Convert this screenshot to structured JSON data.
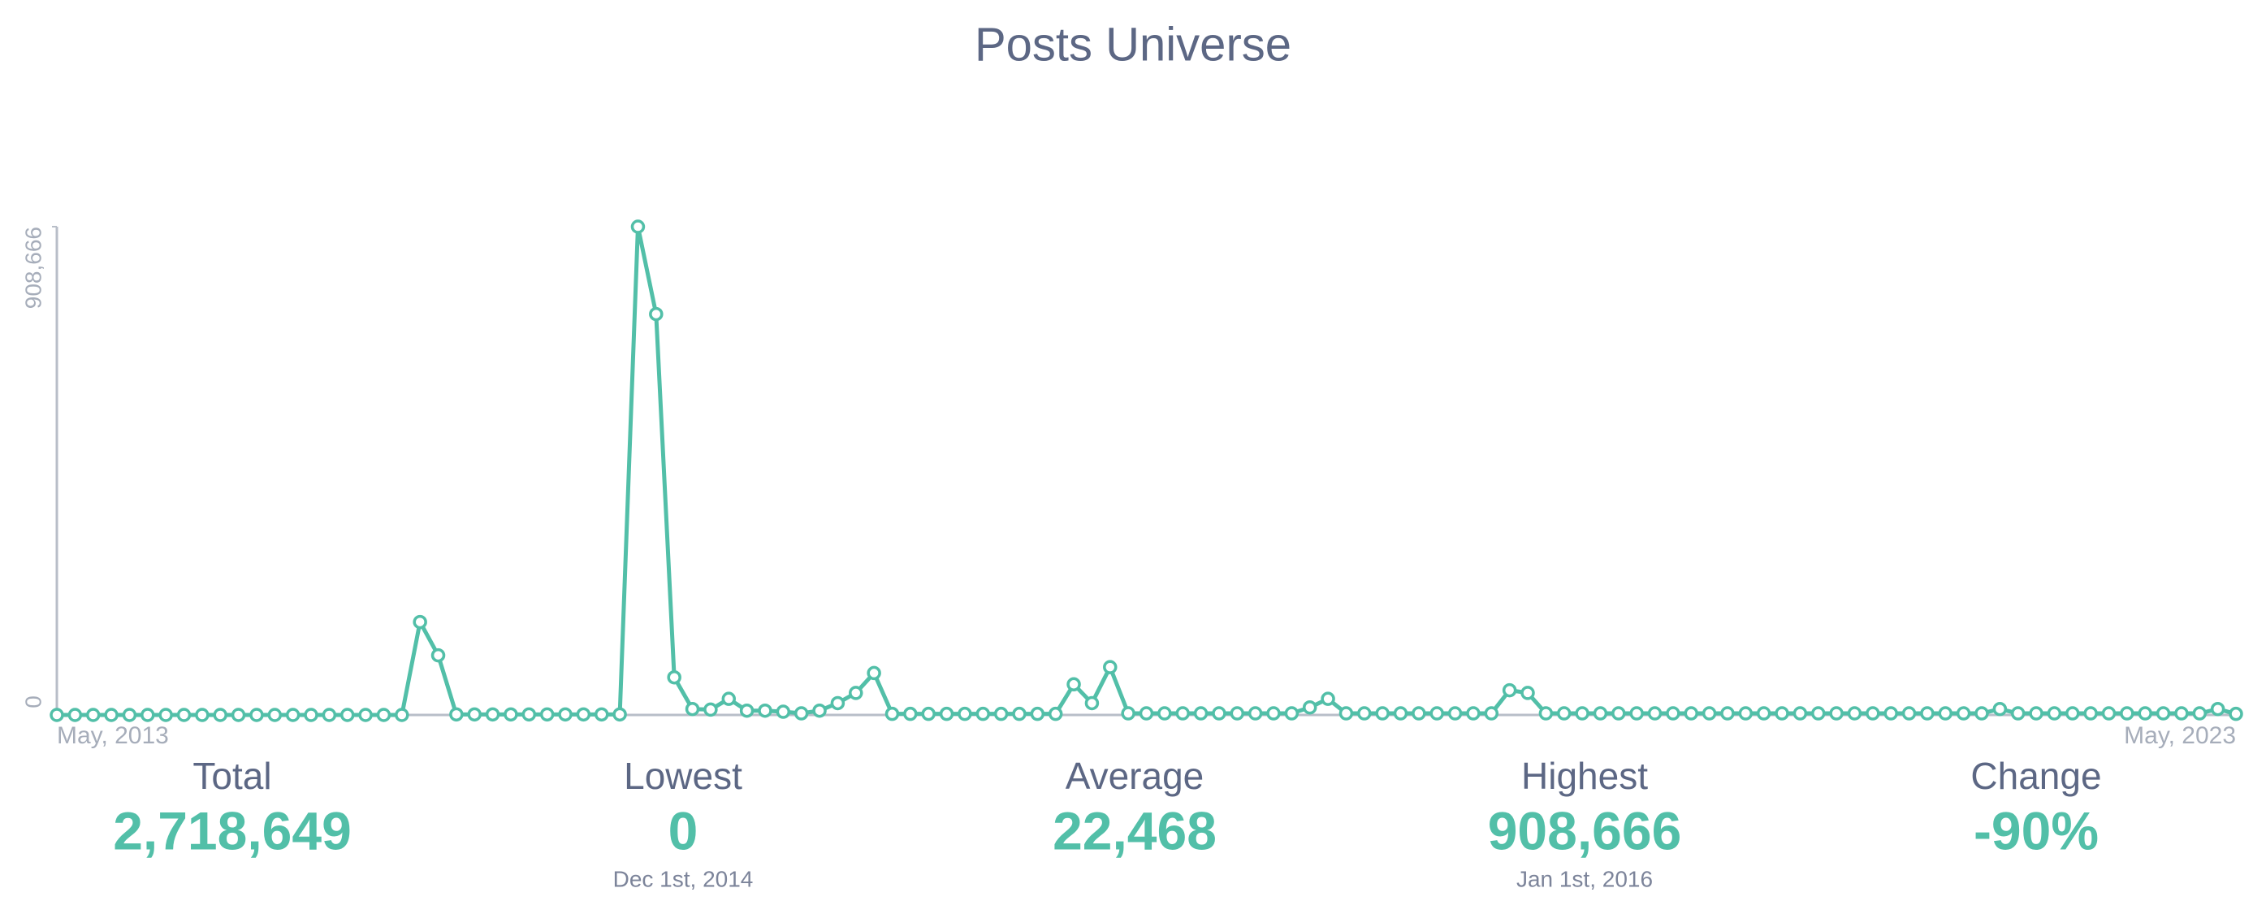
{
  "chart_data": {
    "type": "line",
    "title": "Posts Universe",
    "categories": [
      "May, 2013",
      null,
      null,
      null,
      null,
      null,
      null,
      null,
      null,
      null,
      null,
      null,
      null,
      null,
      null,
      null,
      null,
      null,
      null,
      null,
      null,
      null,
      null,
      null,
      null,
      null,
      null,
      null,
      null,
      null,
      null,
      null,
      null,
      null,
      null,
      null,
      null,
      null,
      null,
      null,
      null,
      null,
      null,
      null,
      null,
      null,
      null,
      null,
      null,
      null,
      null,
      null,
      null,
      null,
      null,
      null,
      null,
      null,
      null,
      null,
      null,
      null,
      null,
      null,
      null,
      null,
      null,
      null,
      null,
      null,
      null,
      null,
      null,
      null,
      null,
      null,
      null,
      null,
      null,
      null,
      null,
      null,
      null,
      null,
      null,
      null,
      null,
      null,
      null,
      null,
      null,
      null,
      null,
      null,
      null,
      null,
      null,
      null,
      null,
      null,
      null,
      null,
      null,
      null,
      null,
      null,
      null,
      null,
      null,
      null,
      null,
      null,
      null,
      null,
      null,
      null,
      null,
      null,
      null,
      null,
      "May, 2023"
    ],
    "values": [
      0,
      0,
      0,
      0,
      0,
      0,
      0,
      0,
      0,
      0,
      0,
      0,
      0,
      0,
      0,
      0,
      0,
      0,
      0,
      0,
      173000,
      111000,
      1000,
      1000,
      1000,
      1000,
      1000,
      1000,
      1000,
      1000,
      1000,
      1000,
      908666,
      746000,
      70000,
      11000,
      10000,
      30000,
      8000,
      8000,
      6000,
      3000,
      8000,
      22000,
      41000,
      78000,
      2000,
      2000,
      2000,
      2000,
      2000,
      2000,
      2000,
      2000,
      2000,
      2000,
      57000,
      22000,
      89000,
      3000,
      3000,
      3000,
      3000,
      3000,
      3000,
      3000,
      3000,
      3000,
      3000,
      14000,
      30000,
      3000,
      3000,
      3000,
      3000,
      3000,
      3000,
      3000,
      3000,
      3000,
      46000,
      41000,
      3000,
      3000,
      3000,
      3000,
      3000,
      3000,
      3000,
      3000,
      3000,
      3000,
      3000,
      3000,
      3000,
      3000,
      3000,
      3000,
      3000,
      3000,
      3000,
      3000,
      3000,
      3000,
      3000,
      3000,
      3000,
      11000,
      3000,
      3000,
      3000,
      3000,
      3000,
      3000,
      3000,
      3000,
      3000,
      3000,
      3000,
      11000,
      2000
    ],
    "color": "#52bfa8",
    "ylim": [
      0,
      908666
    ],
    "yticks": [
      0,
      {
        "value": 908666,
        "label": "908,666"
      }
    ],
    "stats": [
      {
        "label": "Total",
        "value": "2,718,649"
      },
      {
        "label": "Lowest",
        "value": "0",
        "date": "Dec 1st, 2014"
      },
      {
        "label": "Average",
        "value": "22,468"
      },
      {
        "label": "Highest",
        "value": "908,666",
        "date": "Jan 1st, 2016"
      },
      {
        "label": "Change",
        "value": "-90%"
      }
    ]
  }
}
